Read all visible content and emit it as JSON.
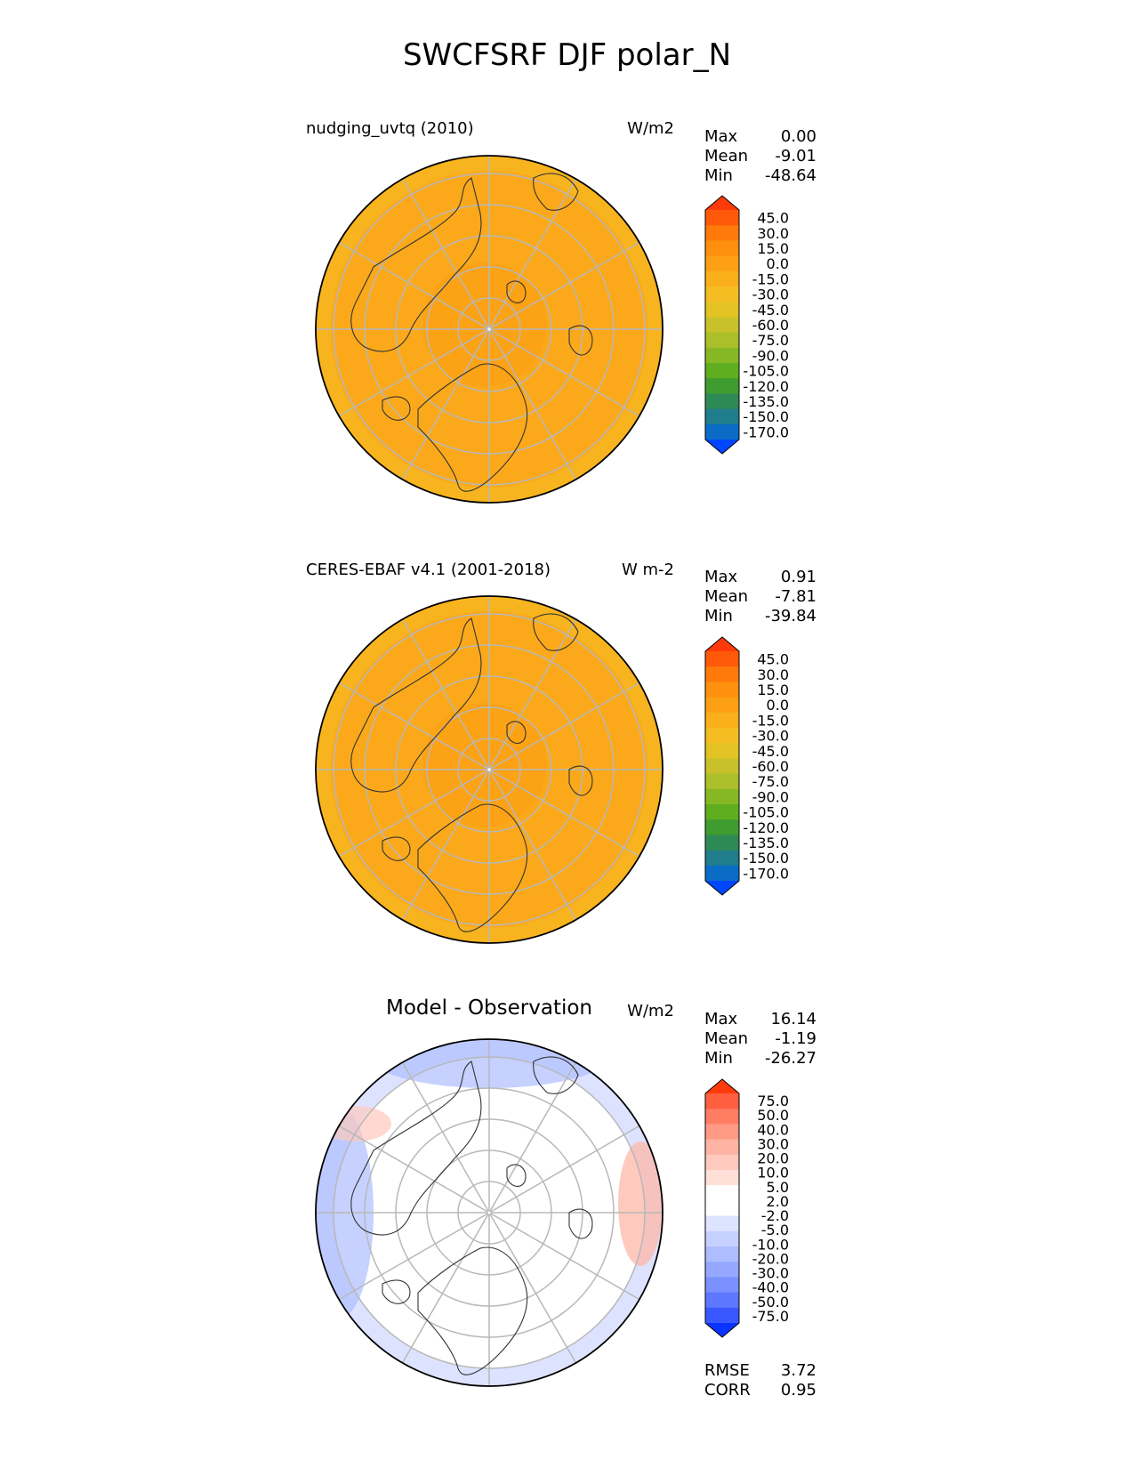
{
  "figure_title": "SWCFSRF DJF polar_N",
  "panels": [
    {
      "title": "nudging_uvtq (2010)",
      "units": "W/m2",
      "stats": {
        "max_label": "Max",
        "max": "0.00",
        "mean_label": "Mean",
        "mean": "-9.01",
        "min_label": "Min",
        "min": "-48.64"
      },
      "colorbar_ticks": [
        "45.0",
        "30.0",
        "15.0",
        "0.0",
        "-15.0",
        "-30.0",
        "-45.0",
        "-60.0",
        "-75.0",
        "-90.0",
        "-105.0",
        "-120.0",
        "-135.0",
        "-150.0",
        "-170.0"
      ],
      "fill_color": "#fba91a"
    },
    {
      "title": "CERES-EBAF v4.1 (2001-2018)",
      "units": "W m-2",
      "stats": {
        "max_label": "Max",
        "max": "0.91",
        "mean_label": "Mean",
        "mean": "-7.81",
        "min_label": "Min",
        "min": "-39.84"
      },
      "colorbar_ticks": [
        "45.0",
        "30.0",
        "15.0",
        "0.0",
        "-15.0",
        "-30.0",
        "-45.0",
        "-60.0",
        "-75.0",
        "-90.0",
        "-105.0",
        "-120.0",
        "-135.0",
        "-150.0",
        "-170.0"
      ],
      "fill_color": "#fba91a"
    },
    {
      "title": "Model - Observation",
      "units": "W/m2",
      "stats": {
        "max_label": "Max",
        "max": "16.14",
        "mean_label": "Mean",
        "mean": "-1.19",
        "min_label": "Min",
        "min": "-26.27"
      },
      "colorbar_ticks": [
        "75.0",
        "50.0",
        "40.0",
        "30.0",
        "20.0",
        "10.0",
        "5.0",
        "2.0",
        "-2.0",
        "-5.0",
        "-10.0",
        "-20.0",
        "-30.0",
        "-40.0",
        "-50.0",
        "-75.0"
      ],
      "fill_color": "#ffffff"
    }
  ],
  "metrics": {
    "rmse_label": "RMSE",
    "rmse": "3.72",
    "corr_label": "CORR",
    "corr": "0.95"
  },
  "colors": {
    "sequential": [
      "#ff3a0a",
      "#ff5a0a",
      "#ff7a0a",
      "#ff900e",
      "#fda014",
      "#fbaf1b",
      "#f6bd22",
      "#e3c324",
      "#c9c12a",
      "#aabf2a",
      "#86b825",
      "#5fae1f",
      "#3f9c2f",
      "#2e8a55",
      "#1f7d8c",
      "#0b6cc6",
      "#0046ff"
    ],
    "diverging": [
      "#ff3a0a",
      "#ff5f3f",
      "#ff7d62",
      "#ff9a85",
      "#ffb3a3",
      "#ffc9bd",
      "#ffe0d8",
      "#ffffff",
      "#ffffff",
      "#dde4ff",
      "#c6d1ff",
      "#aebdff",
      "#95a8ff",
      "#7a91ff",
      "#5e77ff",
      "#3a58ff",
      "#0a34ff"
    ]
  }
}
